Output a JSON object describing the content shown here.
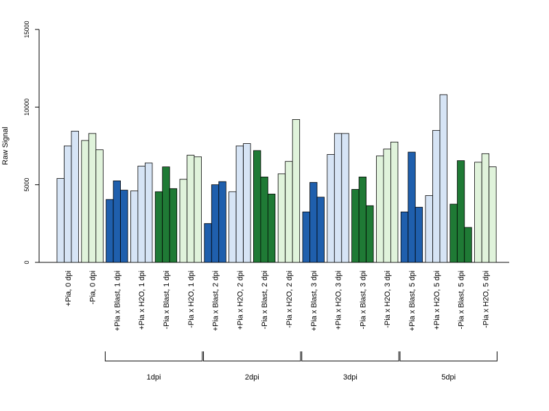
{
  "chart_data": {
    "type": "bar",
    "title": "",
    "xlabel": "",
    "ylabel": "Raw Signal",
    "ylim": [
      0,
      15000
    ],
    "yticks": [
      0,
      5000,
      10000,
      15000
    ],
    "grid": false,
    "legend": "none",
    "categories": [
      "+Pia, 0 dpi",
      "-Pia, 0 dpi",
      "+Pia x Blast, 1 dpi",
      "+Pia x H2O, 1 dpi",
      "-Pia x Blast, 1 dpi",
      "-Pia x H2O, 1 dpi",
      "+Pia x Blast, 2 dpi",
      "+Pia x H2O, 2 dpi",
      "-Pia x Blast, 2 dpi",
      "-Pia x H2O, 2 dpi",
      "+Pia x Blast, 3 dpi",
      "+Pia x H2O, 3 dpi",
      "-Pia x Blast, 3 dpi",
      "-Pia x H2O, 3 dpi",
      "+Pia x Blast, 5 dpi",
      "+Pia x H2O, 5 dpi",
      "-Pia x Blast, 5 dpi",
      "-Pia x H2O, 5 dpi"
    ],
    "replicates": [
      [
        5400,
        7500,
        8450
      ],
      [
        7850,
        8300,
        7250
      ],
      [
        4050,
        5250,
        4650
      ],
      [
        4600,
        6200,
        6400
      ],
      [
        4550,
        6150,
        4750
      ],
      [
        5350,
        6900,
        6800
      ],
      [
        2500,
        5000,
        5200
      ],
      [
        4550,
        7500,
        7650
      ],
      [
        7200,
        5500,
        4400
      ],
      [
        5700,
        6500,
        9200
      ],
      [
        3250,
        5150,
        4200
      ],
      [
        6950,
        8300,
        8300
      ],
      [
        4700,
        5500,
        3650
      ],
      [
        6850,
        7300,
        7750
      ],
      [
        3250,
        7100,
        3550
      ],
      [
        4300,
        8500,
        10800
      ],
      [
        3750,
        6550,
        2250
      ],
      [
        6450,
        7000,
        6150
      ]
    ],
    "category_colors": [
      "#d6e4f5",
      "#e0f3db",
      "#1f5fad",
      "#d6e4f5",
      "#1f7a35",
      "#e0f3db",
      "#1f5fad",
      "#d6e4f5",
      "#1f7a35",
      "#e0f3db",
      "#1f5fad",
      "#d6e4f5",
      "#1f7a35",
      "#e0f3db",
      "#1f5fad",
      "#d6e4f5",
      "#1f7a35",
      "#e0f3db"
    ],
    "groups": [
      {
        "label": "1dpi",
        "from": 2,
        "to": 5
      },
      {
        "label": "2dpi",
        "from": 6,
        "to": 9
      },
      {
        "label": "3dpi",
        "from": 10,
        "to": 13
      },
      {
        "label": "5dpi",
        "from": 14,
        "to": 17
      }
    ]
  }
}
